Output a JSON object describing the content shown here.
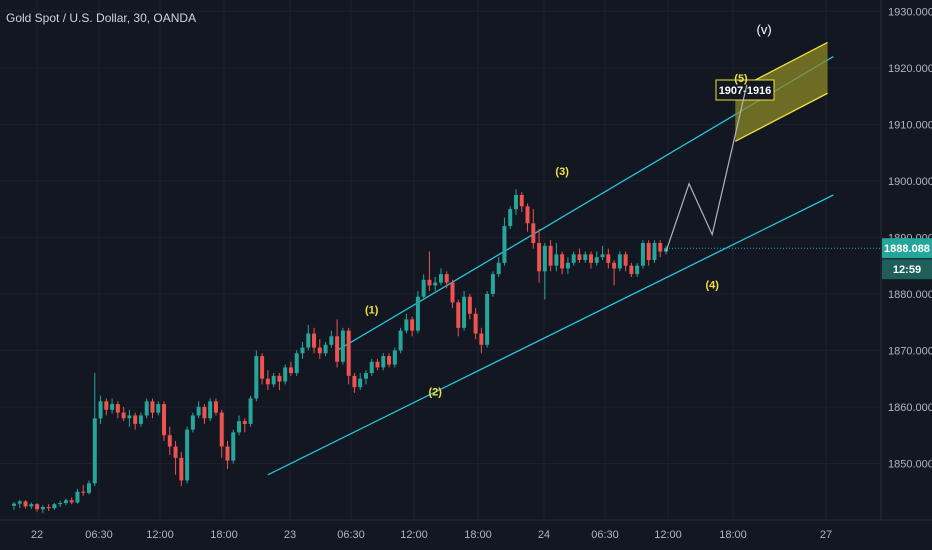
{
  "chart_data": {
    "type": "candlestick",
    "title": "Gold Spot / U.S. Dollar, 30, OANDA",
    "ylim": [
      1840,
      1932
    ],
    "y_ticks": [
      1850,
      1860,
      1870,
      1880,
      1890,
      1900,
      1910,
      1920,
      1930
    ],
    "y_tick_labels": [
      "1850.000",
      "1860.000",
      "1870.000",
      "1880.000",
      "1890.000",
      "1900.000",
      "1910.000",
      "1920.000",
      "1930.000"
    ],
    "x_tick_labels": [
      "22",
      "06:30",
      "12:00",
      "18:00",
      "23",
      "06:30",
      "12:00",
      "18:00",
      "24",
      "06:30",
      "12:00",
      "18:00",
      "27"
    ],
    "current_price": 1888.088,
    "current_price_label": "1888.088",
    "countdown_label": "12:59",
    "candles": [
      [
        1842.5,
        1843.2,
        1841.8,
        1842.9
      ],
      [
        1842.9,
        1843.6,
        1842.1,
        1843.3
      ],
      [
        1843.3,
        1843.5,
        1842.0,
        1842.4
      ],
      [
        1842.4,
        1843.1,
        1841.9,
        1842.8
      ],
      [
        1842.8,
        1843.0,
        1841.5,
        1841.9
      ],
      [
        1841.9,
        1842.6,
        1841.2,
        1842.3
      ],
      [
        1842.3,
        1842.8,
        1841.6,
        1842.1
      ],
      [
        1842.1,
        1843.0,
        1841.8,
        1842.8
      ],
      [
        1842.8,
        1843.4,
        1842.3,
        1843.0
      ],
      [
        1843.0,
        1843.8,
        1842.6,
        1843.5
      ],
      [
        1843.5,
        1844.0,
        1842.8,
        1843.1
      ],
      [
        1843.1,
        1845.5,
        1842.9,
        1845.0
      ],
      [
        1845.0,
        1846.2,
        1844.3,
        1844.8
      ],
      [
        1844.8,
        1847.0,
        1844.5,
        1846.5
      ],
      [
        1846.5,
        1866.0,
        1846.0,
        1858.0
      ],
      [
        1858.0,
        1862.0,
        1857.0,
        1861.0
      ],
      [
        1861.0,
        1861.5,
        1858.5,
        1859.5
      ],
      [
        1859.5,
        1861.5,
        1858.8,
        1860.5
      ],
      [
        1860.5,
        1861.0,
        1858.0,
        1859.0
      ],
      [
        1859.0,
        1860.0,
        1857.5,
        1858.0
      ],
      [
        1858.0,
        1859.5,
        1856.5,
        1858.5
      ],
      [
        1858.5,
        1859.0,
        1856.0,
        1857.0
      ],
      [
        1857.0,
        1859.0,
        1856.5,
        1858.5
      ],
      [
        1858.5,
        1861.5,
        1858.0,
        1861.0
      ],
      [
        1861.0,
        1861.5,
        1858.0,
        1859.0
      ],
      [
        1859.0,
        1861.0,
        1858.5,
        1860.5
      ],
      [
        1860.5,
        1861.0,
        1854.0,
        1855.0
      ],
      [
        1855.0,
        1856.5,
        1851.5,
        1853.0
      ],
      [
        1853.0,
        1854.0,
        1848.0,
        1851.0
      ],
      [
        1851.0,
        1852.0,
        1846.0,
        1847.0
      ],
      [
        1847.0,
        1856.5,
        1846.5,
        1856.0
      ],
      [
        1856.0,
        1859.0,
        1855.5,
        1858.5
      ],
      [
        1858.5,
        1861.0,
        1858.0,
        1860.0
      ],
      [
        1860.0,
        1860.5,
        1857.0,
        1858.0
      ],
      [
        1858.0,
        1861.5,
        1857.5,
        1861.0
      ],
      [
        1861.0,
        1861.5,
        1858.5,
        1859.0
      ],
      [
        1859.0,
        1859.5,
        1851.0,
        1853.0
      ],
      [
        1853.0,
        1854.0,
        1849.0,
        1850.5
      ],
      [
        1850.5,
        1856.0,
        1850.0,
        1855.5
      ],
      [
        1855.5,
        1858.5,
        1855.0,
        1857.5
      ],
      [
        1857.5,
        1858.0,
        1855.5,
        1857.0
      ],
      [
        1857.0,
        1862.0,
        1856.5,
        1861.5
      ],
      [
        1861.5,
        1870.0,
        1861.0,
        1869.0
      ],
      [
        1869.0,
        1869.5,
        1864.0,
        1865.0
      ],
      [
        1865.0,
        1866.5,
        1863.0,
        1864.0
      ],
      [
        1864.0,
        1866.0,
        1863.5,
        1865.5
      ],
      [
        1865.5,
        1866.0,
        1863.0,
        1864.5
      ],
      [
        1864.5,
        1867.5,
        1864.0,
        1867.0
      ],
      [
        1867.0,
        1868.0,
        1865.5,
        1866.0
      ],
      [
        1866.0,
        1870.0,
        1865.5,
        1869.5
      ],
      [
        1869.5,
        1871.5,
        1868.5,
        1870.5
      ],
      [
        1870.5,
        1874.5,
        1870.0,
        1873.0
      ],
      [
        1873.0,
        1874.0,
        1869.5,
        1870.5
      ],
      [
        1870.5,
        1872.0,
        1868.5,
        1869.5
      ],
      [
        1869.5,
        1871.5,
        1869.0,
        1871.0
      ],
      [
        1871.0,
        1873.5,
        1870.5,
        1872.5
      ],
      [
        1872.5,
        1875.5,
        1867.0,
        1868.0
      ],
      [
        1868.0,
        1874.0,
        1867.5,
        1873.5
      ],
      [
        1873.5,
        1874.0,
        1864.0,
        1865.5
      ],
      [
        1865.5,
        1866.0,
        1862.5,
        1863.5
      ],
      [
        1863.5,
        1866.0,
        1863.0,
        1865.0
      ],
      [
        1865.0,
        1866.5,
        1864.0,
        1866.0
      ],
      [
        1866.0,
        1868.5,
        1865.5,
        1868.0
      ],
      [
        1868.0,
        1868.5,
        1866.5,
        1867.0
      ],
      [
        1867.0,
        1869.5,
        1866.5,
        1869.0
      ],
      [
        1869.0,
        1869.5,
        1867.0,
        1867.5
      ],
      [
        1867.5,
        1870.5,
        1867.0,
        1870.0
      ],
      [
        1870.0,
        1874.0,
        1869.5,
        1873.5
      ],
      [
        1873.5,
        1876.5,
        1873.0,
        1875.5
      ],
      [
        1875.5,
        1876.0,
        1872.5,
        1873.5
      ],
      [
        1873.5,
        1880.5,
        1873.0,
        1879.5
      ],
      [
        1879.5,
        1883.5,
        1879.0,
        1882.5
      ],
      [
        1882.5,
        1887.5,
        1880.5,
        1881.5
      ],
      [
        1881.5,
        1883.0,
        1880.5,
        1882.0
      ],
      [
        1882.0,
        1884.5,
        1881.5,
        1883.5
      ],
      [
        1883.5,
        1884.0,
        1881.0,
        1882.0
      ],
      [
        1882.0,
        1882.5,
        1877.5,
        1878.5
      ],
      [
        1878.5,
        1879.0,
        1872.5,
        1874.0
      ],
      [
        1874.0,
        1880.5,
        1873.5,
        1879.5
      ],
      [
        1879.5,
        1880.0,
        1875.5,
        1876.5
      ],
      [
        1876.5,
        1877.5,
        1872.0,
        1873.0
      ],
      [
        1873.0,
        1874.0,
        1869.5,
        1871.0
      ],
      [
        1871.0,
        1880.5,
        1870.5,
        1880.0
      ],
      [
        1880.0,
        1884.0,
        1879.5,
        1883.5
      ],
      [
        1883.5,
        1886.5,
        1883.0,
        1885.5
      ],
      [
        1885.5,
        1893.5,
        1885.0,
        1892.0
      ],
      [
        1892.0,
        1895.5,
        1891.5,
        1895.0
      ],
      [
        1895.0,
        1898.5,
        1894.0,
        1897.5
      ],
      [
        1897.5,
        1898.0,
        1894.5,
        1895.5
      ],
      [
        1895.5,
        1896.0,
        1891.0,
        1892.5
      ],
      [
        1892.5,
        1895.0,
        1888.0,
        1889.0
      ],
      [
        1889.0,
        1891.5,
        1882.0,
        1884.0
      ],
      [
        1884.0,
        1889.0,
        1879.0,
        1888.5
      ],
      [
        1888.5,
        1889.5,
        1884.0,
        1885.0
      ],
      [
        1885.0,
        1889.0,
        1884.0,
        1887.0
      ],
      [
        1887.0,
        1887.5,
        1883.5,
        1884.5
      ],
      [
        1884.5,
        1886.5,
        1883.5,
        1885.5
      ],
      [
        1885.5,
        1887.5,
        1885.0,
        1887.0
      ],
      [
        1887.0,
        1888.0,
        1885.5,
        1886.0
      ],
      [
        1886.0,
        1887.5,
        1885.5,
        1887.0
      ],
      [
        1887.0,
        1887.5,
        1884.5,
        1885.5
      ],
      [
        1885.5,
        1887.5,
        1885.0,
        1886.5
      ],
      [
        1886.5,
        1888.5,
        1886.0,
        1887.0
      ],
      [
        1887.0,
        1888.0,
        1884.5,
        1885.5
      ],
      [
        1885.5,
        1886.0,
        1881.5,
        1884.5
      ],
      [
        1884.5,
        1887.5,
        1884.0,
        1887.0
      ],
      [
        1887.0,
        1887.5,
        1884.0,
        1885.0
      ],
      [
        1885.0,
        1885.5,
        1883.0,
        1883.5
      ],
      [
        1883.5,
        1885.5,
        1883.0,
        1885.0
      ],
      [
        1885.0,
        1889.5,
        1884.5,
        1889.0
      ],
      [
        1889.0,
        1889.5,
        1885.0,
        1886.0
      ],
      [
        1886.0,
        1889.5,
        1885.5,
        1889.0
      ],
      [
        1889.0,
        1889.5,
        1886.5,
        1887.5
      ],
      [
        1887.5,
        1888.5,
        1887.0,
        1888.088
      ]
    ],
    "channel": {
      "upper": [
        [
          56,
          1870.0
        ],
        [
          142,
          1922.0
        ]
      ],
      "lower": [
        [
          44,
          1848.0
        ],
        [
          142,
          1897.5
        ]
      ]
    },
    "target_zone": {
      "low": 1907,
      "high": 1916,
      "label": "1907-1916"
    },
    "projection": [
      [
        113,
        1887.5
      ],
      [
        117,
        1899.5
      ],
      [
        121,
        1890.5
      ],
      [
        127,
        1917.0
      ]
    ],
    "wave_labels": [
      {
        "text": "(1)",
        "i": 62,
        "price": 1876.5
      },
      {
        "text": "(2)",
        "i": 73,
        "price": 1862.0
      },
      {
        "text": "(3)",
        "i": 95,
        "price": 1901.0
      },
      {
        "text": "(4)",
        "i": 121,
        "price": 1881.0
      },
      {
        "text": "(5)",
        "i": 126,
        "price": 1917.5
      },
      {
        "text": "(v)",
        "i": 130,
        "price": 1926.0
      }
    ],
    "colors": {
      "background": "#131722",
      "up": "#26a69a",
      "down": "#ef5350",
      "channel": "#26c6da",
      "target_fill": "#8b8a25",
      "target_border": "#f0e040",
      "wave_label": "#f0e040",
      "projection": "#b2b5be",
      "price_badge": "#26a69a"
    }
  }
}
